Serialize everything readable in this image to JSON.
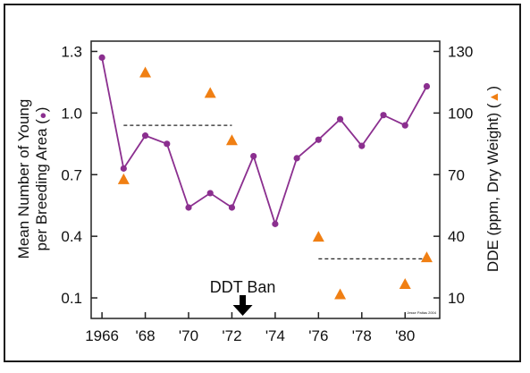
{
  "chart_data": {
    "type": "line+scatter",
    "xlabel": "",
    "x_ticks": [
      "1966",
      "'68",
      "'70",
      "'72",
      "'74",
      "'76",
      "'78",
      "'80"
    ],
    "x_tick_values": [
      1966,
      1968,
      1970,
      1972,
      1974,
      1976,
      1978,
      1980
    ],
    "xlim": [
      1965.5,
      1981.6
    ],
    "y_left": {
      "label_line1": "Mean Number of Young",
      "label_line2": "per Breeding Area (",
      "label_marker": "●",
      "label_end": ")",
      "ticks": [
        "1.3",
        "1.0",
        "0.7",
        "0.4",
        "0.1"
      ],
      "tick_values": [
        1.3,
        1.0,
        0.7,
        0.4,
        0.1
      ],
      "ylim": [
        0.0,
        1.35
      ]
    },
    "y_right": {
      "label": "DDE (ppm, Dry Weight) (",
      "label_marker": "▲",
      "label_end": ")",
      "ticks": [
        "130",
        "100",
        "70",
        "40",
        "10"
      ],
      "tick_values": [
        130,
        100,
        70,
        40,
        10
      ],
      "ylim": [
        0,
        135
      ]
    },
    "series": [
      {
        "name": "Mean Number of Young per Breeding Area",
        "marker": "circle",
        "axis": "left",
        "color": "#8b2f8f",
        "x": [
          1966,
          1967,
          1968,
          1969,
          1970,
          1971,
          1972,
          1973,
          1974,
          1975,
          1976,
          1977,
          1978,
          1979,
          1980,
          1981
        ],
        "y": [
          1.27,
          0.73,
          0.89,
          0.85,
          0.54,
          0.61,
          0.54,
          0.79,
          0.46,
          0.78,
          0.87,
          0.97,
          0.84,
          0.99,
          0.94,
          1.13
        ]
      },
      {
        "name": "DDE (ppm, Dry Weight)",
        "marker": "triangle",
        "axis": "right",
        "color": "#f07f13",
        "x": [
          1967,
          1968,
          1971,
          1972,
          1976,
          1977,
          1980,
          1981
        ],
        "y": [
          68,
          120,
          110,
          87,
          40,
          12,
          17,
          30
        ]
      }
    ],
    "reference_lines": [
      {
        "axis": "left",
        "x_start": 1967,
        "x_end": 1972,
        "y": 0.94
      },
      {
        "axis": "right",
        "x_start": 1976,
        "x_end": 1981,
        "y": 29
      }
    ],
    "annotation": {
      "text": "DDT Ban",
      "x": 1972.5
    },
    "credit": "Jesse Paltas 2004",
    "grid": false,
    "legend": "none",
    "colors": {
      "line": "#8b2f8f",
      "triangle": "#f07f13",
      "axis": "#222222"
    }
  }
}
